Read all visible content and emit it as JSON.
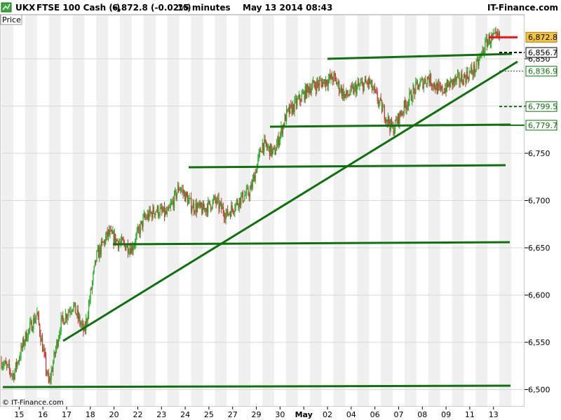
{
  "header": {
    "symbol": "UKX",
    "instrument": "FTSE 100 Cash (-)",
    "quote": "6,872.8 (-0.02%)",
    "interval": "15 minutes",
    "datetime": "May 13 2014 08:43",
    "brand": "IT-Finance.com"
  },
  "panel_label": "Price",
  "copyright": "© IT-Finance.com",
  "chart_data": {
    "type": "candlestick",
    "ylim": [
      6490,
      6890
    ],
    "y_ticks": [
      {
        "value": 6500,
        "label": "6,500"
      },
      {
        "value": 6550,
        "label": "6,550"
      },
      {
        "value": 6600,
        "label": "6,600"
      },
      {
        "value": 6650,
        "label": "6,650"
      },
      {
        "value": 6700,
        "label": "6,700"
      },
      {
        "value": 6750,
        "label": "6,750"
      },
      {
        "value": 6800,
        "label": "6,800"
      },
      {
        "value": 6850,
        "label": "6,850"
      }
    ],
    "x_labels": [
      {
        "label": "15",
        "idx": 1.5
      },
      {
        "label": "16",
        "idx": 3.5
      },
      {
        "label": "17",
        "idx": 5.5
      },
      {
        "label": "18",
        "idx": 7.5
      },
      {
        "label": "20",
        "idx": 9.5
      },
      {
        "label": "22",
        "idx": 11.5
      },
      {
        "label": "23",
        "idx": 13.5
      },
      {
        "label": "24",
        "idx": 15.5
      },
      {
        "label": "25",
        "idx": 17.5
      },
      {
        "label": "27",
        "idx": 19.5
      },
      {
        "label": "29",
        "idx": 21.5
      },
      {
        "label": "30",
        "idx": 23.5
      },
      {
        "label": "May",
        "idx": 25.5,
        "bold": true
      },
      {
        "label": "02",
        "idx": 27.5
      },
      {
        "label": "04",
        "idx": 29.5
      },
      {
        "label": "06",
        "idx": 31.5
      },
      {
        "label": "07",
        "idx": 33.5
      },
      {
        "label": "08",
        "idx": 35.5
      },
      {
        "label": "09",
        "idx": 37.5
      },
      {
        "label": "11",
        "idx": 39.5
      },
      {
        "label": "13",
        "idx": 41.5
      }
    ],
    "x_count": 44,
    "price_anchors": [
      [
        0,
        6530
      ],
      [
        1,
        6515
      ],
      [
        2,
        6555
      ],
      [
        3,
        6580
      ],
      [
        4,
        6505
      ],
      [
        5,
        6570
      ],
      [
        6,
        6590
      ],
      [
        7,
        6560
      ],
      [
        8,
        6640
      ],
      [
        9,
        6665
      ],
      [
        10,
        6655
      ],
      [
        11,
        6650
      ],
      [
        12,
        6680
      ],
      [
        13,
        6690
      ],
      [
        14,
        6685
      ],
      [
        15,
        6715
      ],
      [
        16,
        6695
      ],
      [
        17,
        6690
      ],
      [
        18,
        6700
      ],
      [
        19,
        6685
      ],
      [
        20,
        6700
      ],
      [
        21,
        6710
      ],
      [
        22,
        6760
      ],
      [
        23,
        6750
      ],
      [
        24,
        6790
      ],
      [
        25,
        6805
      ],
      [
        26,
        6820
      ],
      [
        27,
        6825
      ],
      [
        28,
        6830
      ],
      [
        29,
        6810
      ],
      [
        30,
        6820
      ],
      [
        31,
        6825
      ],
      [
        32,
        6800
      ],
      [
        33,
        6775
      ],
      [
        34,
        6800
      ],
      [
        35,
        6820
      ],
      [
        36,
        6830
      ],
      [
        37,
        6815
      ],
      [
        38,
        6825
      ],
      [
        39,
        6830
      ],
      [
        40,
        6840
      ],
      [
        41,
        6870
      ],
      [
        42,
        6872.8
      ]
    ],
    "candle_count": 560,
    "up_color": "#22aa22",
    "down_color": "#cc3333",
    "trendlines": [
      {
        "x1": 90,
        "y1": 487,
        "x2": 738,
        "y2": 88
      },
      {
        "x1": 467,
        "y1": 84,
        "x2": 730,
        "y2": 77
      },
      {
        "x1": 385,
        "y1": 181,
        "x2": 728,
        "y2": 178
      },
      {
        "x1": 269,
        "y1": 239,
        "x2": 721,
        "y2": 236
      },
      {
        "x1": 161,
        "y1": 349,
        "x2": 727,
        "y2": 346
      },
      {
        "x1": 4,
        "y1": 553,
        "x2": 728,
        "y2": 551
      }
    ],
    "trend_color": "#107010",
    "price_tags": [
      {
        "value": 6872.8,
        "label": "6,872.8",
        "style": "current"
      },
      {
        "value": 6856.7,
        "label": "6,856.7",
        "style": "black-dash"
      },
      {
        "value": 6836.9,
        "label": "6,836.9",
        "style": "green-dot"
      },
      {
        "value": 6799.5,
        "label": "6,799.5",
        "style": "green-dash"
      },
      {
        "value": 6779.7,
        "label": "6,779.7",
        "style": "green-solid"
      }
    ],
    "current_marker_color": "#ee1111",
    "current_tag_color": "#f5c542"
  }
}
